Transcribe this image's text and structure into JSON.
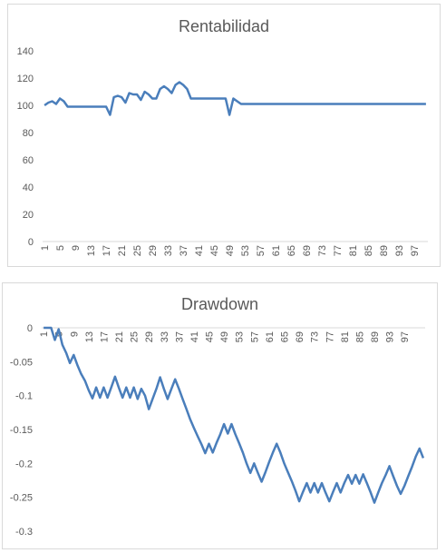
{
  "chart_data": [
    {
      "type": "line",
      "title": "Rentabilidad",
      "ylim": [
        0,
        140
      ],
      "yticks": [
        0,
        20,
        40,
        60,
        80,
        100,
        120,
        140
      ],
      "xtick_labels": [
        "1",
        "5",
        "9",
        "13",
        "17",
        "21",
        "25",
        "29",
        "33",
        "37",
        "41",
        "45",
        "49",
        "53",
        "57",
        "61",
        "65",
        "69",
        "73",
        "77",
        "81",
        "85",
        "89",
        "93",
        "97"
      ],
      "grid": false,
      "color": "#4a7ebb",
      "series": [
        {
          "values": [
            100,
            102,
            103,
            101,
            105,
            103,
            99,
            99,
            99,
            99,
            99,
            99,
            99,
            99,
            99,
            99,
            99,
            93,
            106,
            107,
            106,
            102,
            109,
            108,
            108,
            104,
            110,
            108,
            105,
            105,
            112,
            114,
            112,
            109,
            115,
            117,
            115,
            112,
            105,
            105,
            105,
            105,
            105,
            105,
            105,
            105,
            105,
            105,
            93,
            105,
            103,
            101,
            101,
            101,
            101,
            101,
            101,
            101,
            101,
            101,
            101,
            101,
            101,
            101,
            101,
            101,
            101,
            101,
            101,
            101,
            101,
            101,
            101,
            101,
            101,
            101,
            101,
            101,
            101,
            101,
            101,
            101,
            101,
            101,
            101,
            101,
            101,
            101,
            101,
            101,
            101,
            101,
            101,
            101,
            101,
            101,
            101,
            101,
            101,
            101
          ]
        }
      ]
    },
    {
      "type": "line",
      "title": "Drawdown",
      "ylim": [
        -0.3,
        0
      ],
      "yticks": [
        "0",
        "-0.05",
        "-0.1",
        "-0.15",
        "-0.2",
        "-0.25",
        "-0.3"
      ],
      "ytick_values": [
        0,
        -0.05,
        -0.1,
        -0.15,
        -0.2,
        -0.25,
        -0.3
      ],
      "xtick_labels": [
        "1",
        "5",
        "9",
        "13",
        "17",
        "21",
        "25",
        "29",
        "33",
        "37",
        "41",
        "45",
        "49",
        "53",
        "57",
        "61",
        "65",
        "69",
        "73",
        "77",
        "81",
        "85",
        "89",
        "93",
        "97"
      ],
      "grid": false,
      "color": "#4a7ebb",
      "series": [
        {
          "values": [
            0,
            0,
            0,
            -0.018,
            -0.002,
            -0.025,
            -0.037,
            -0.052,
            -0.04,
            -0.055,
            -0.068,
            -0.078,
            -0.092,
            -0.104,
            -0.088,
            -0.103,
            -0.088,
            -0.103,
            -0.088,
            -0.072,
            -0.088,
            -0.103,
            -0.088,
            -0.103,
            -0.088,
            -0.105,
            -0.09,
            -0.1,
            -0.12,
            -0.105,
            -0.09,
            -0.073,
            -0.09,
            -0.105,
            -0.09,
            -0.076,
            -0.09,
            -0.105,
            -0.12,
            -0.135,
            -0.148,
            -0.16,
            -0.172,
            -0.185,
            -0.171,
            -0.184,
            -0.17,
            -0.157,
            -0.142,
            -0.156,
            -0.142,
            -0.157,
            -0.17,
            -0.184,
            -0.2,
            -0.214,
            -0.2,
            -0.214,
            -0.227,
            -0.213,
            -0.198,
            -0.184,
            -0.171,
            -0.184,
            -0.2,
            -0.213,
            -0.226,
            -0.24,
            -0.256,
            -0.242,
            -0.229,
            -0.243,
            -0.229,
            -0.243,
            -0.229,
            -0.243,
            -0.256,
            -0.242,
            -0.229,
            -0.243,
            -0.229,
            -0.217,
            -0.23,
            -0.217,
            -0.23,
            -0.216,
            -0.229,
            -0.243,
            -0.258,
            -0.243,
            -0.229,
            -0.217,
            -0.204,
            -0.219,
            -0.233,
            -0.245,
            -0.233,
            -0.219,
            -0.205,
            -0.19,
            -0.178,
            -0.192
          ]
        }
      ]
    }
  ]
}
